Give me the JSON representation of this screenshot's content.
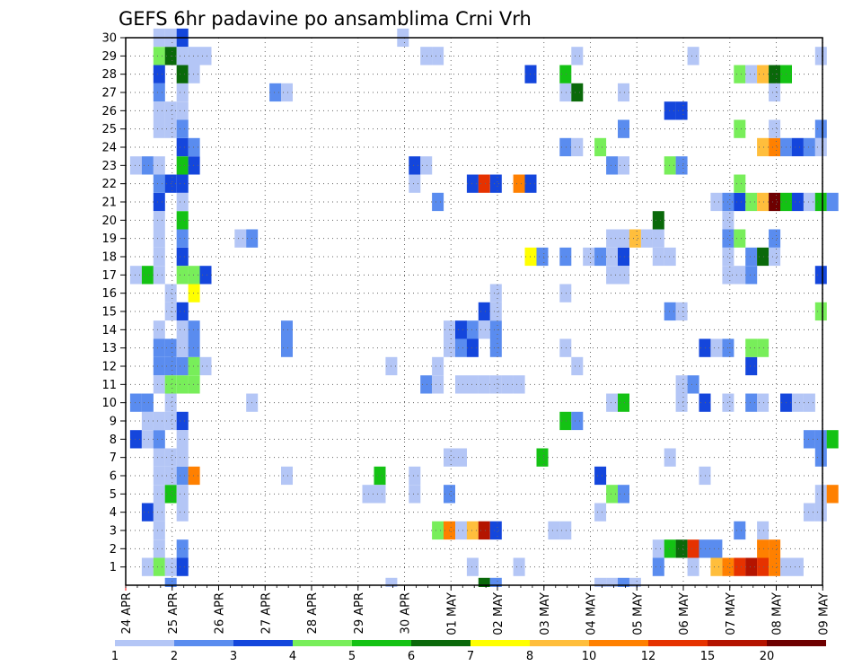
{
  "chart_data": {
    "type": "heatmap",
    "title": "GEFS 6hr padavine po ansamblima Crni Vrh",
    "y": {
      "min": 0,
      "max": 30,
      "labels": [
        1,
        2,
        3,
        4,
        5,
        6,
        7,
        8,
        9,
        10,
        11,
        12,
        13,
        14,
        15,
        16,
        17,
        18,
        19,
        20,
        21,
        22,
        23,
        24,
        25,
        26,
        27,
        28,
        29,
        30
      ]
    },
    "x": {
      "start": "2025-04-24",
      "days": 15,
      "steps_per_day": 4,
      "labels": [
        "24 APR",
        "25 APR",
        "26 APR",
        "27 APR",
        "28 APR",
        "29 APR",
        "30 APR",
        "01 MAY",
        "02 MAY",
        "03 MAY",
        "04 MAY",
        "05 MAY",
        "06 MAY",
        "07 MAY",
        "08 MAY",
        "09 MAY"
      ]
    },
    "levels": [
      1,
      2,
      3,
      4,
      5,
      6,
      7,
      8,
      10,
      12,
      15,
      20
    ],
    "colorbar_labels": [
      "1",
      "2",
      "3",
      "4",
      "5",
      "6",
      "7",
      "8",
      "10",
      "12",
      "15",
      "20"
    ],
    "colors": [
      "#b4c6f6",
      "#5a8cef",
      "#1446dc",
      "#78ee5a",
      "#14c214",
      "#0a690a",
      "#ffff00",
      "#ffbe3c",
      "#ff8000",
      "#e63200",
      "#b41400",
      "#6e0000"
    ],
    "grid": true,
    "cells": [
      [
        1,
        2,
        1
      ],
      [
        1,
        3,
        4
      ],
      [
        1,
        4,
        1
      ],
      [
        1,
        5,
        3
      ],
      [
        1,
        30,
        1
      ],
      [
        1,
        34,
        1
      ],
      [
        1,
        46,
        2
      ],
      [
        1,
        49,
        1
      ],
      [
        1,
        51,
        8
      ],
      [
        1,
        52,
        9
      ],
      [
        1,
        53,
        10
      ],
      [
        1,
        54,
        11
      ],
      [
        1,
        55,
        10
      ],
      [
        1,
        56,
        9
      ],
      [
        1,
        57,
        1
      ],
      [
        1,
        58,
        1
      ],
      [
        2,
        3,
        1
      ],
      [
        2,
        5,
        2
      ],
      [
        2,
        46,
        1
      ],
      [
        2,
        47,
        5
      ],
      [
        2,
        48,
        6
      ],
      [
        2,
        49,
        10
      ],
      [
        2,
        50,
        2
      ],
      [
        2,
        51,
        2
      ],
      [
        2,
        55,
        9
      ],
      [
        2,
        56,
        9
      ],
      [
        3,
        3,
        1
      ],
      [
        3,
        27,
        4
      ],
      [
        3,
        28,
        9
      ],
      [
        3,
        29,
        1
      ],
      [
        3,
        30,
        8
      ],
      [
        3,
        31,
        11
      ],
      [
        3,
        32,
        3
      ],
      [
        3,
        37,
        1
      ],
      [
        3,
        38,
        1
      ],
      [
        3,
        53,
        2
      ],
      [
        3,
        55,
        1
      ],
      [
        4,
        2,
        3
      ],
      [
        4,
        3,
        1
      ],
      [
        4,
        5,
        1
      ],
      [
        4,
        41,
        1
      ],
      [
        4,
        59,
        1
      ],
      [
        4,
        60,
        1
      ],
      [
        5,
        3,
        1
      ],
      [
        5,
        4,
        5
      ],
      [
        5,
        5,
        1
      ],
      [
        5,
        21,
        1
      ],
      [
        5,
        22,
        1
      ],
      [
        5,
        25,
        1
      ],
      [
        5,
        28,
        2
      ],
      [
        5,
        42,
        4
      ],
      [
        5,
        43,
        2
      ],
      [
        5,
        60,
        1
      ],
      [
        5,
        61,
        9
      ],
      [
        6,
        3,
        1
      ],
      [
        6,
        4,
        1
      ],
      [
        6,
        5,
        2
      ],
      [
        6,
        6,
        9
      ],
      [
        6,
        14,
        1
      ],
      [
        6,
        22,
        5
      ],
      [
        6,
        25,
        1
      ],
      [
        6,
        41,
        3
      ],
      [
        6,
        50,
        1
      ],
      [
        7,
        3,
        1
      ],
      [
        7,
        4,
        1
      ],
      [
        7,
        5,
        1
      ],
      [
        7,
        28,
        1
      ],
      [
        7,
        29,
        1
      ],
      [
        7,
        36,
        5
      ],
      [
        7,
        47,
        1
      ],
      [
        7,
        60,
        2
      ],
      [
        8,
        1,
        3
      ],
      [
        8,
        2,
        1
      ],
      [
        8,
        3,
        2
      ],
      [
        8,
        5,
        1
      ],
      [
        8,
        59,
        2
      ],
      [
        8,
        60,
        2
      ],
      [
        8,
        61,
        5
      ],
      [
        9,
        2,
        1
      ],
      [
        9,
        3,
        1
      ],
      [
        9,
        4,
        1
      ],
      [
        9,
        5,
        3
      ],
      [
        9,
        38,
        5
      ],
      [
        9,
        39,
        2
      ],
      [
        10,
        1,
        2
      ],
      [
        10,
        2,
        2
      ],
      [
        10,
        4,
        1
      ],
      [
        10,
        11,
        1
      ],
      [
        10,
        42,
        1
      ],
      [
        10,
        43,
        5
      ],
      [
        10,
        48,
        1
      ],
      [
        10,
        50,
        3
      ],
      [
        10,
        52,
        1
      ],
      [
        10,
        54,
        2
      ],
      [
        10,
        55,
        1
      ],
      [
        10,
        57,
        3
      ],
      [
        10,
        58,
        1
      ],
      [
        10,
        59,
        1
      ],
      [
        11,
        3,
        1
      ],
      [
        11,
        4,
        4
      ],
      [
        11,
        5,
        4
      ],
      [
        11,
        6,
        4
      ],
      [
        11,
        26,
        2
      ],
      [
        11,
        27,
        1
      ],
      [
        11,
        29,
        1
      ],
      [
        11,
        30,
        1
      ],
      [
        11,
        31,
        1
      ],
      [
        11,
        32,
        1
      ],
      [
        11,
        33,
        1
      ],
      [
        11,
        34,
        1
      ],
      [
        11,
        48,
        1
      ],
      [
        11,
        49,
        2
      ],
      [
        12,
        3,
        2
      ],
      [
        12,
        4,
        2
      ],
      [
        12,
        5,
        2
      ],
      [
        12,
        6,
        4
      ],
      [
        12,
        7,
        1
      ],
      [
        12,
        23,
        1
      ],
      [
        12,
        27,
        1
      ],
      [
        12,
        39,
        1
      ],
      [
        12,
        54,
        3
      ],
      [
        13,
        3,
        2
      ],
      [
        13,
        4,
        2
      ],
      [
        13,
        5,
        1
      ],
      [
        13,
        6,
        2
      ],
      [
        13,
        14,
        2
      ],
      [
        13,
        28,
        1
      ],
      [
        13,
        29,
        2
      ],
      [
        13,
        30,
        3
      ],
      [
        13,
        32,
        2
      ],
      [
        13,
        38,
        1
      ],
      [
        13,
        50,
        3
      ],
      [
        13,
        51,
        1
      ],
      [
        13,
        52,
        2
      ],
      [
        13,
        54,
        4
      ],
      [
        13,
        55,
        4
      ],
      [
        14,
        3,
        1
      ],
      [
        14,
        5,
        1
      ],
      [
        14,
        6,
        2
      ],
      [
        14,
        14,
        2
      ],
      [
        14,
        28,
        1
      ],
      [
        14,
        29,
        3
      ],
      [
        14,
        30,
        2
      ],
      [
        14,
        31,
        1
      ],
      [
        14,
        32,
        2
      ],
      [
        15,
        4,
        1
      ],
      [
        15,
        5,
        3
      ],
      [
        15,
        31,
        3
      ],
      [
        15,
        32,
        1
      ],
      [
        15,
        47,
        2
      ],
      [
        15,
        48,
        1
      ],
      [
        15,
        60,
        4
      ],
      [
        16,
        4,
        1
      ],
      [
        16,
        6,
        7
      ],
      [
        16,
        32,
        1
      ],
      [
        16,
        38,
        1
      ],
      [
        17,
        1,
        1
      ],
      [
        17,
        2,
        5
      ],
      [
        17,
        3,
        1
      ],
      [
        17,
        5,
        4
      ],
      [
        17,
        6,
        4
      ],
      [
        17,
        7,
        3
      ],
      [
        17,
        42,
        1
      ],
      [
        17,
        43,
        1
      ],
      [
        17,
        52,
        1
      ],
      [
        17,
        53,
        1
      ],
      [
        17,
        54,
        2
      ],
      [
        17,
        60,
        3
      ],
      [
        18,
        3,
        1
      ],
      [
        18,
        5,
        3
      ],
      [
        18,
        35,
        7
      ],
      [
        18,
        36,
        2
      ],
      [
        18,
        38,
        2
      ],
      [
        18,
        40,
        1
      ],
      [
        18,
        41,
        2
      ],
      [
        18,
        42,
        1
      ],
      [
        18,
        43,
        3
      ],
      [
        18,
        46,
        1
      ],
      [
        18,
        47,
        1
      ],
      [
        18,
        52,
        1
      ],
      [
        18,
        54,
        2
      ],
      [
        18,
        55,
        6
      ],
      [
        18,
        56,
        1
      ],
      [
        19,
        3,
        1
      ],
      [
        19,
        5,
        2
      ],
      [
        19,
        10,
        1
      ],
      [
        19,
        11,
        2
      ],
      [
        19,
        42,
        1
      ],
      [
        19,
        43,
        1
      ],
      [
        19,
        44,
        8
      ],
      [
        19,
        45,
        1
      ],
      [
        19,
        46,
        1
      ],
      [
        19,
        52,
        2
      ],
      [
        19,
        53,
        4
      ],
      [
        19,
        56,
        2
      ],
      [
        20,
        3,
        1
      ],
      [
        20,
        5,
        5
      ],
      [
        20,
        46,
        6
      ],
      [
        20,
        52,
        1
      ],
      [
        21,
        3,
        3
      ],
      [
        21,
        5,
        1
      ],
      [
        21,
        27,
        2
      ],
      [
        21,
        51,
        1
      ],
      [
        21,
        52,
        2
      ],
      [
        21,
        53,
        3
      ],
      [
        21,
        54,
        4
      ],
      [
        21,
        55,
        8
      ],
      [
        21,
        56,
        12
      ],
      [
        21,
        57,
        5
      ],
      [
        21,
        58,
        3
      ],
      [
        21,
        59,
        1
      ],
      [
        21,
        60,
        5
      ],
      [
        21,
        61,
        2
      ],
      [
        22,
        3,
        2
      ],
      [
        22,
        4,
        3
      ],
      [
        22,
        5,
        3
      ],
      [
        22,
        25,
        1
      ],
      [
        22,
        30,
        3
      ],
      [
        22,
        31,
        10
      ],
      [
        22,
        32,
        3
      ],
      [
        22,
        34,
        9
      ],
      [
        22,
        35,
        3
      ],
      [
        22,
        53,
        4
      ],
      [
        23,
        1,
        1
      ],
      [
        23,
        2,
        2
      ],
      [
        23,
        3,
        1
      ],
      [
        23,
        5,
        5
      ],
      [
        23,
        6,
        3
      ],
      [
        23,
        25,
        3
      ],
      [
        23,
        26,
        1
      ],
      [
        23,
        42,
        2
      ],
      [
        23,
        43,
        1
      ],
      [
        23,
        47,
        4
      ],
      [
        23,
        48,
        2
      ],
      [
        24,
        5,
        3
      ],
      [
        24,
        6,
        2
      ],
      [
        24,
        38,
        2
      ],
      [
        24,
        39,
        1
      ],
      [
        24,
        41,
        4
      ],
      [
        24,
        55,
        8
      ],
      [
        24,
        56,
        9
      ],
      [
        24,
        57,
        2
      ],
      [
        24,
        58,
        3
      ],
      [
        24,
        59,
        2
      ],
      [
        24,
        60,
        1
      ],
      [
        25,
        3,
        1
      ],
      [
        25,
        4,
        1
      ],
      [
        25,
        5,
        2
      ],
      [
        25,
        43,
        2
      ],
      [
        25,
        53,
        4
      ],
      [
        25,
        56,
        1
      ],
      [
        25,
        60,
        2
      ],
      [
        26,
        3,
        1
      ],
      [
        26,
        4,
        1
      ],
      [
        26,
        5,
        1
      ],
      [
        26,
        47,
        3
      ],
      [
        26,
        48,
        3
      ],
      [
        27,
        3,
        2
      ],
      [
        27,
        5,
        1
      ],
      [
        27,
        13,
        2
      ],
      [
        27,
        14,
        1
      ],
      [
        27,
        38,
        1
      ],
      [
        27,
        39,
        6
      ],
      [
        27,
        43,
        1
      ],
      [
        27,
        56,
        1
      ],
      [
        28,
        3,
        3
      ],
      [
        28,
        5,
        6
      ],
      [
        28,
        6,
        1
      ],
      [
        28,
        35,
        3
      ],
      [
        28,
        38,
        5
      ],
      [
        28,
        53,
        4
      ],
      [
        28,
        54,
        1
      ],
      [
        28,
        55,
        8
      ],
      [
        28,
        56,
        6
      ],
      [
        28,
        57,
        5
      ],
      [
        29,
        3,
        4
      ],
      [
        29,
        4,
        6
      ],
      [
        29,
        5,
        1
      ],
      [
        29,
        6,
        1
      ],
      [
        29,
        7,
        1
      ],
      [
        29,
        26,
        1
      ],
      [
        29,
        27,
        1
      ],
      [
        29,
        39,
        1
      ],
      [
        29,
        49,
        1
      ],
      [
        29,
        60,
        1
      ],
      [
        30,
        3,
        1
      ],
      [
        30,
        4,
        1
      ],
      [
        30,
        5,
        3
      ],
      [
        30,
        24,
        1
      ],
      [
        0,
        41,
        1
      ],
      [
        0,
        42,
        1
      ],
      [
        0,
        43,
        2
      ],
      [
        0,
        44,
        1
      ],
      [
        0,
        31,
        6
      ],
      [
        0,
        32,
        2
      ],
      [
        0,
        23,
        1
      ],
      [
        0,
        4,
        2
      ]
    ]
  }
}
